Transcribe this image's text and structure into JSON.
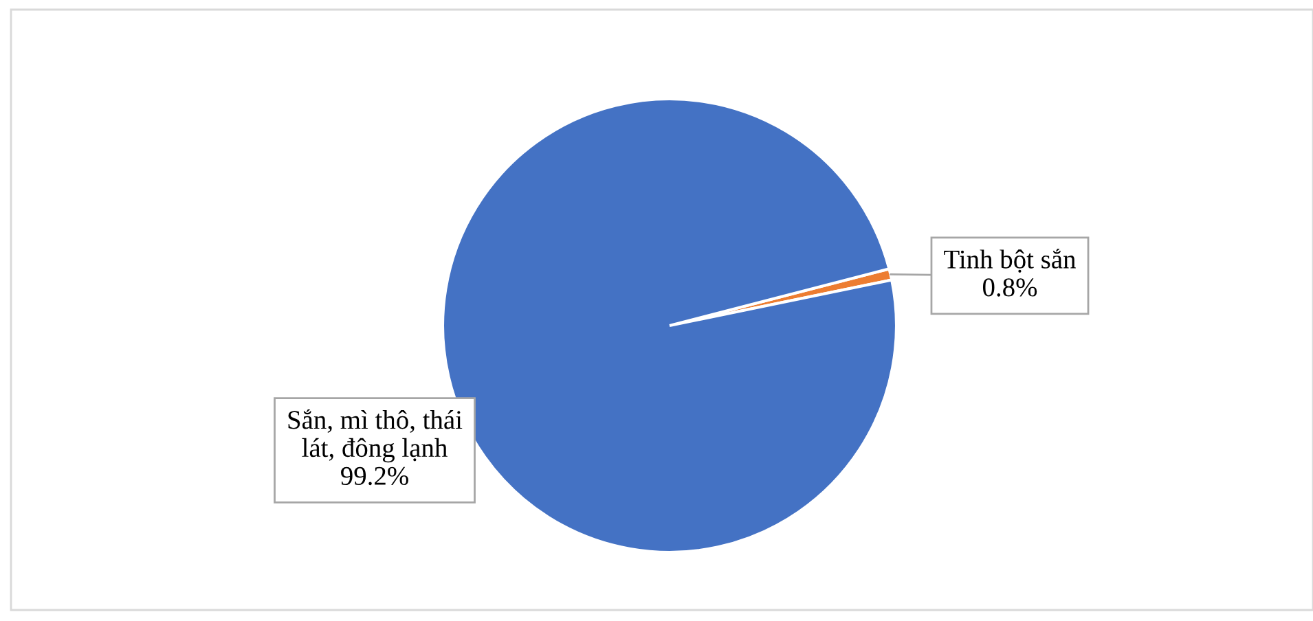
{
  "chart_data": {
    "type": "pie",
    "categories": [
      "Tinh bột sắn",
      "Sắn, mì thô, thái lát, đông lạnh"
    ],
    "values": [
      0.8,
      99.2
    ],
    "colors": [
      "#ed7d31",
      "#4472c4"
    ],
    "value_labels": [
      "0.8%",
      "99.2%"
    ],
    "legend": false
  }
}
